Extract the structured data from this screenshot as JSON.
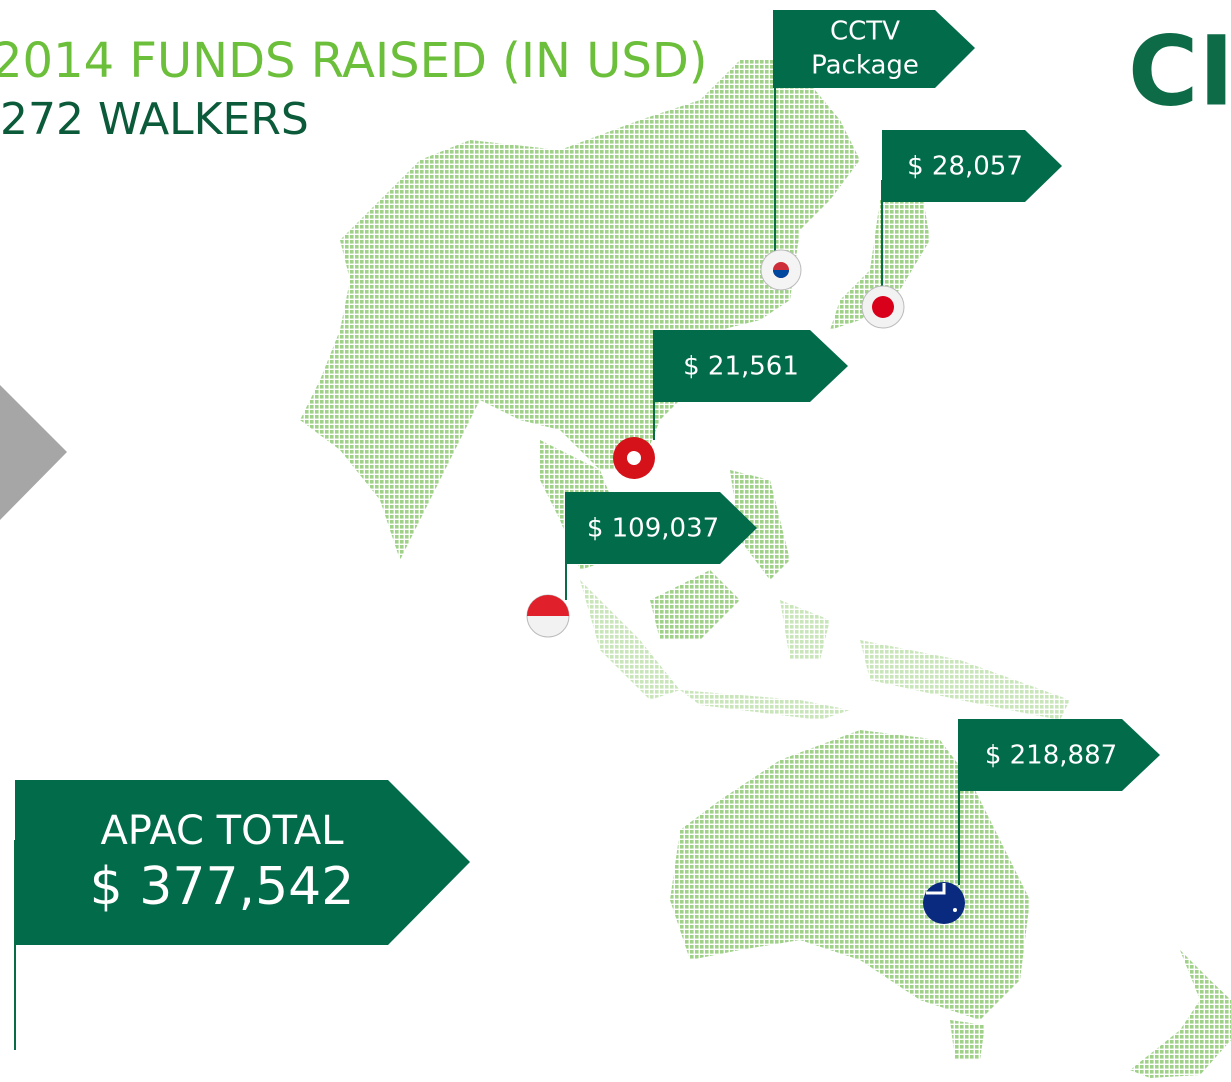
{
  "header": {
    "title": "2014 FUNDS RAISED (IN USD)",
    "subtitle": "272 WALKERS",
    "logo": "CI"
  },
  "callouts": [
    {
      "lines": [
        "CCTV",
        "Package"
      ]
    },
    {
      "lines": [
        "$ 28,057"
      ]
    },
    {
      "lines": [
        "$ 21,561"
      ]
    },
    {
      "lines": [
        "$ 109,037"
      ]
    },
    {
      "lines": [
        "$ 218,887"
      ]
    }
  ],
  "total": {
    "label": "APAC TOTAL",
    "value": "$ 377,542"
  }
}
